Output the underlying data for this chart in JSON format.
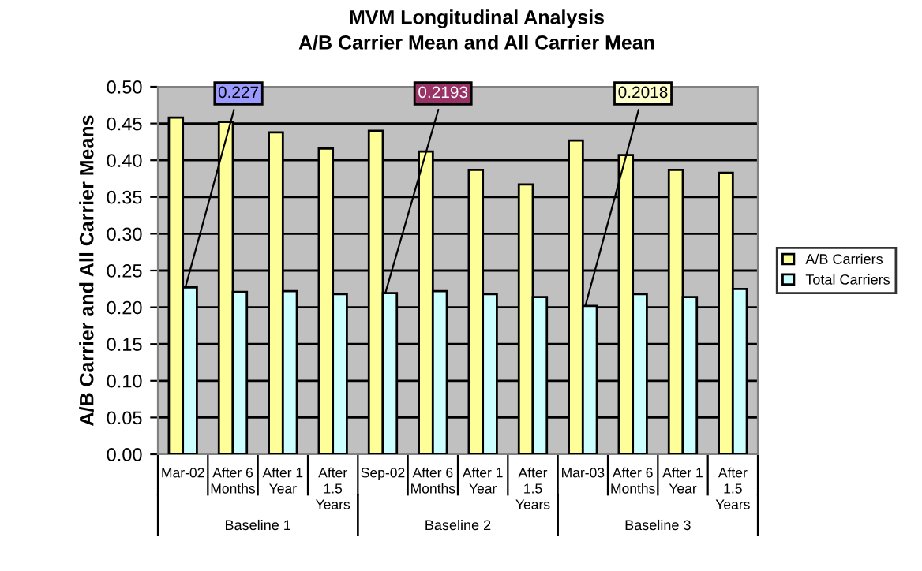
{
  "chart_data": {
    "type": "bar",
    "title": "MVM Longitudinal Analysis",
    "subtitle": "A/B Carrier Mean and All Carrier Mean",
    "ylabel": "A/B Carrier and All Carrier Means",
    "categories": [
      "Mar-02",
      "After 6\nMonths",
      "After 1\nYear",
      "After\n1.5\nYears",
      "Sep-02",
      "After 6\nMonths",
      "After 1\nYear",
      "After\n1.5\nYears",
      "Mar-03",
      "After 6\nMonths",
      "After 1\nYear",
      "After\n1.5\nYears"
    ],
    "series": [
      {
        "name": "A/B Carriers",
        "color": "#ffff99",
        "values": [
          0.458,
          0.452,
          0.438,
          0.416,
          0.44,
          0.412,
          0.387,
          0.367,
          0.427,
          0.407,
          0.387,
          0.383
        ]
      },
      {
        "name": "Total Carriers",
        "color": "#ccffff",
        "values": [
          0.227,
          0.221,
          0.222,
          0.218,
          0.2193,
          0.222,
          0.218,
          0.214,
          0.2018,
          0.218,
          0.214,
          0.225
        ]
      }
    ],
    "ylim": [
      0,
      0.5
    ],
    "yticks": [
      {
        "value": 0,
        "label": "0.00"
      },
      {
        "value": 0.05,
        "label": "0.05"
      },
      {
        "value": 0.1,
        "label": "0.10"
      },
      {
        "value": 0.15,
        "label": "0.15"
      },
      {
        "value": 0.2,
        "label": "0.20"
      },
      {
        "value": 0.25,
        "label": "0.25"
      },
      {
        "value": 0.3,
        "label": "0.30"
      },
      {
        "value": 0.35,
        "label": "0.35"
      },
      {
        "value": 0.4,
        "label": "0.40"
      },
      {
        "value": 0.45,
        "label": "0.45"
      },
      {
        "value": 0.5,
        "label": "0.50"
      }
    ],
    "grid": "y",
    "legend": "right",
    "annotations": [
      {
        "text": "0.227",
        "x": "Mar-02",
        "y": 0.227
      },
      {
        "text": "0.2193",
        "x": "Sep-02",
        "y": 0.2193
      },
      {
        "text": "0.2018",
        "x": "Mar-03",
        "y": 0.2018
      },
      "Baseline 1",
      "Baseline 2",
      "Baseline 3"
    ]
  }
}
